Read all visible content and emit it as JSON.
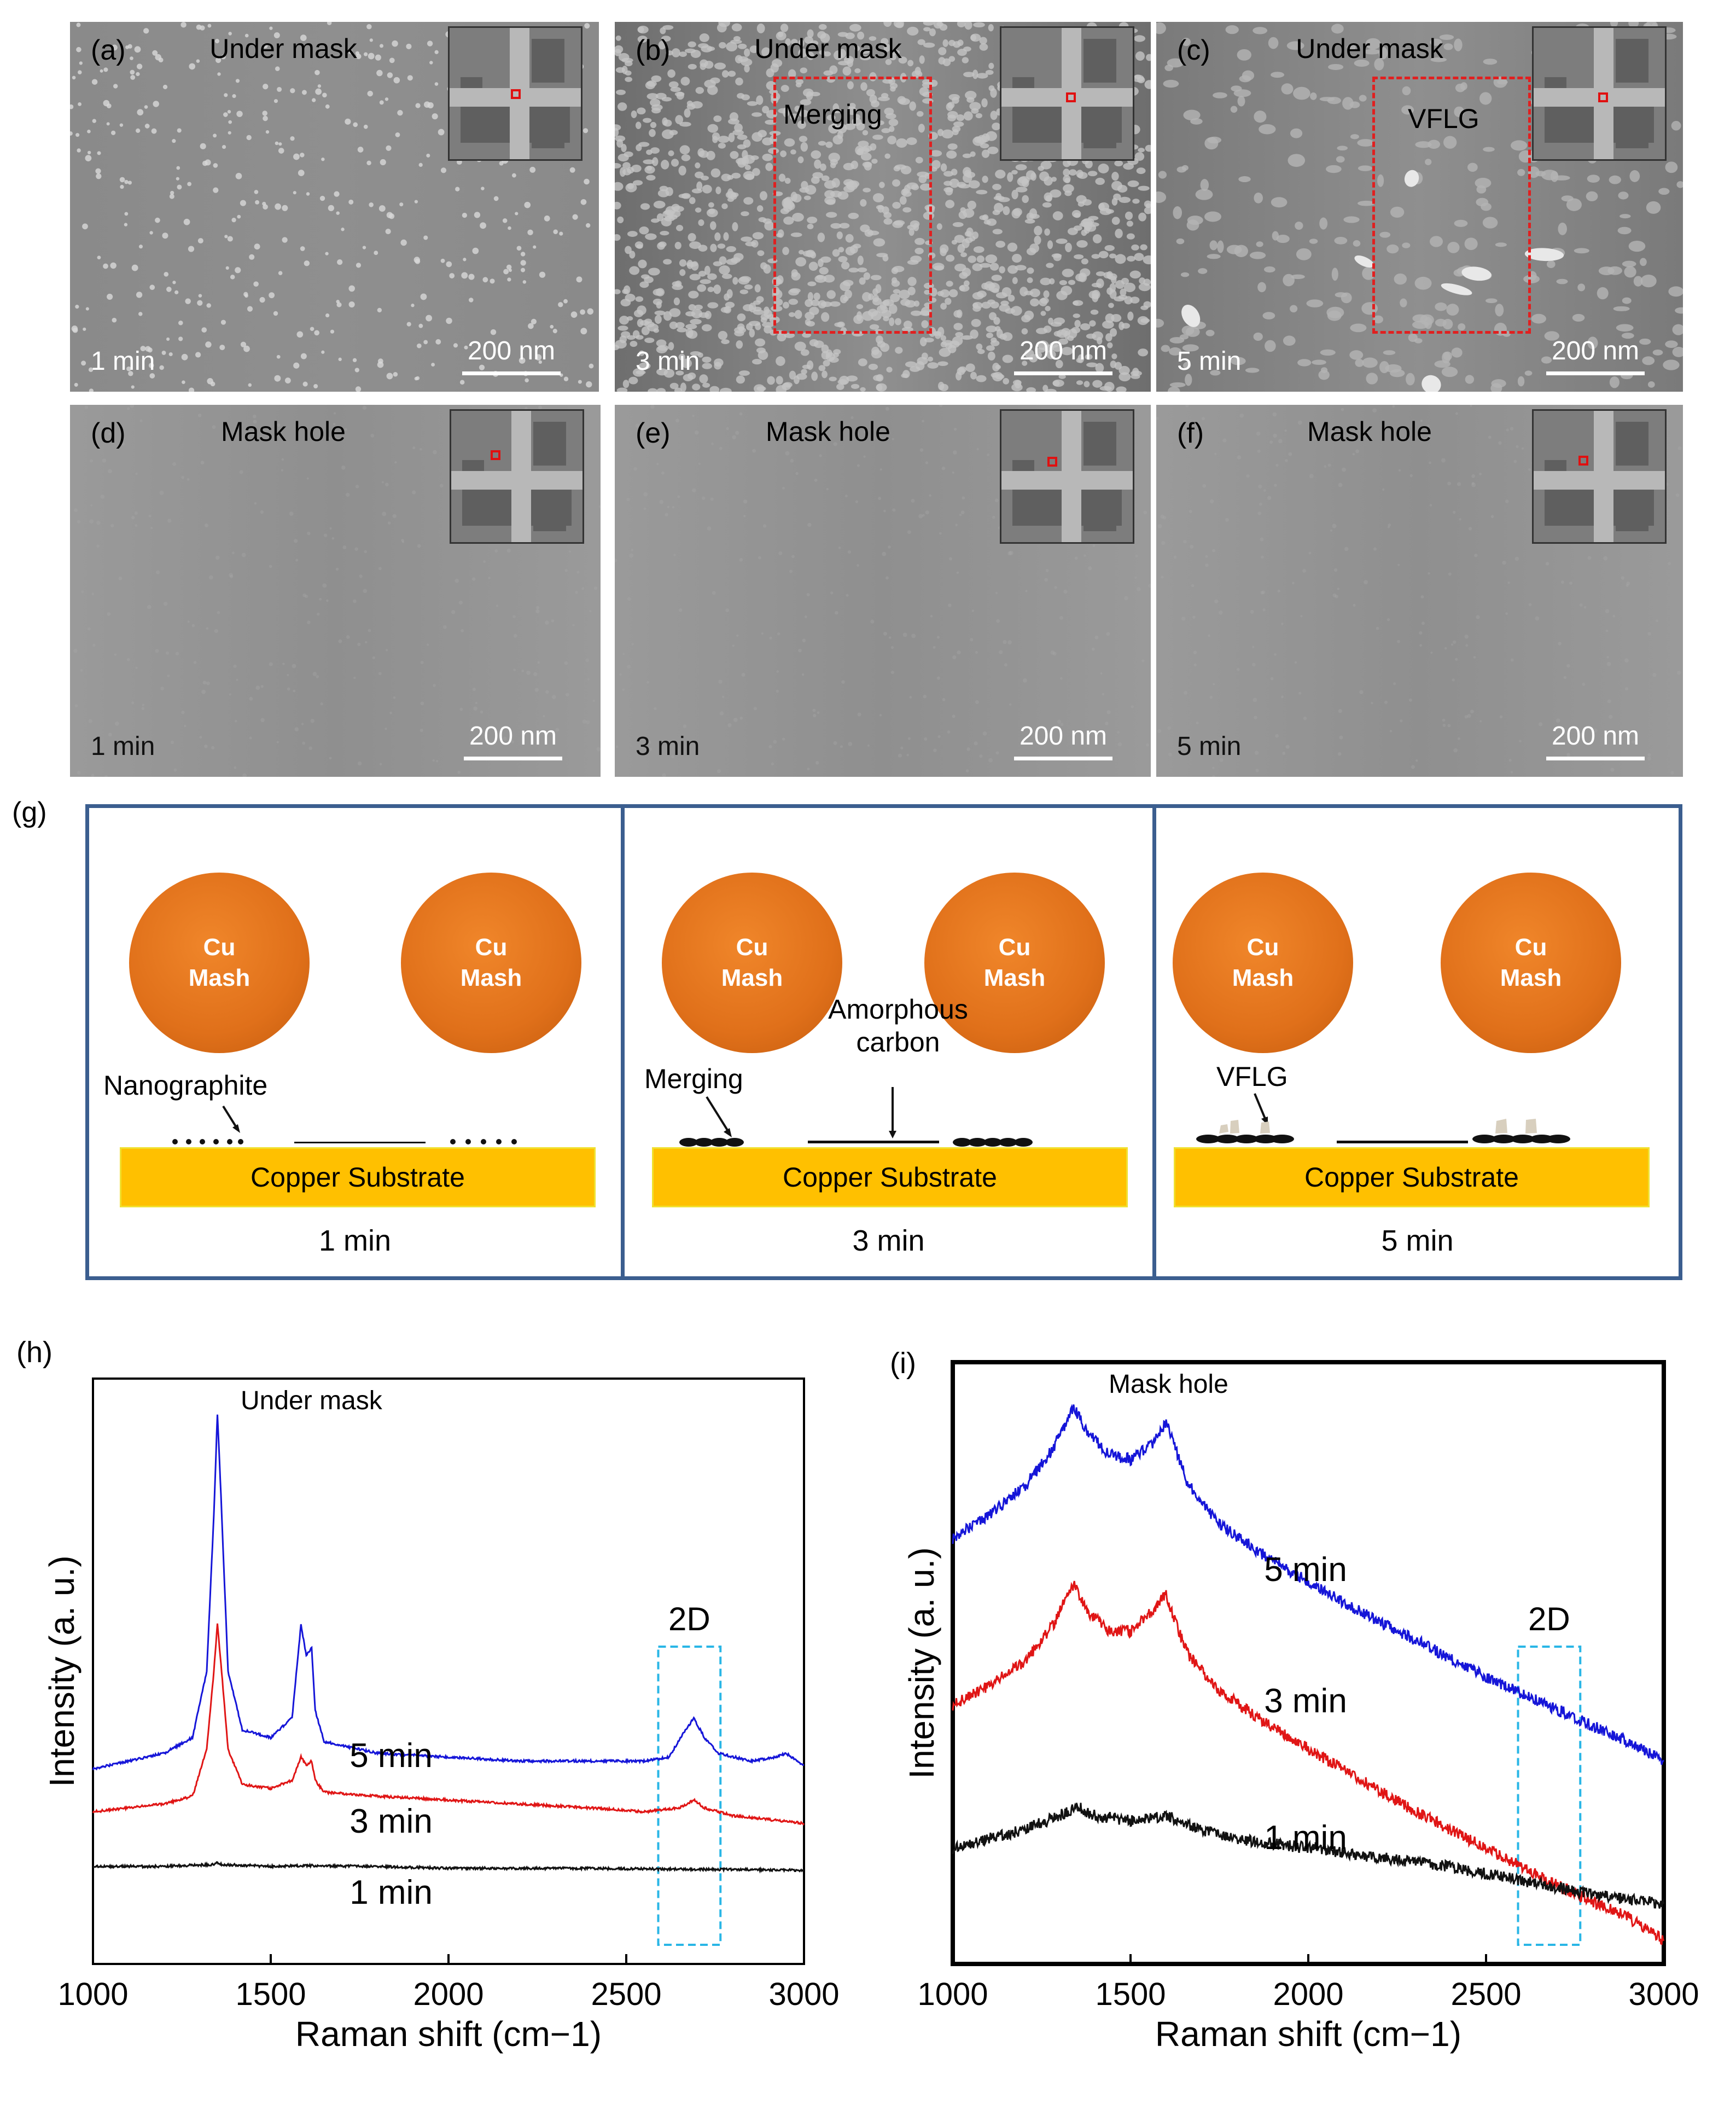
{
  "sem_panels": [
    {
      "id": "a",
      "label": "(a)",
      "title": "Under mask",
      "time": "1 min",
      "scale": "200 nm",
      "annotation": ""
    },
    {
      "id": "b",
      "label": "(b)",
      "title": "Under mask",
      "time": "3 min",
      "scale": "200 nm",
      "annotation": "Merging"
    },
    {
      "id": "c",
      "label": "(c)",
      "title": "Under mask",
      "time": "5 min",
      "scale": "200 nm",
      "annotation": "VFLG"
    },
    {
      "id": "d",
      "label": "(d)",
      "title": "Mask hole",
      "time": "1 min",
      "scale": "200 nm",
      "annotation": ""
    },
    {
      "id": "e",
      "label": "(e)",
      "title": "Mask hole",
      "time": "3 min",
      "scale": "200 nm",
      "annotation": ""
    },
    {
      "id": "f",
      "label": "(f)",
      "title": "Mask hole",
      "time": "5 min",
      "scale": "200 nm",
      "annotation": ""
    }
  ],
  "schematic": {
    "label": "(g)",
    "cu_line1": "Cu",
    "cu_line2": "Mash",
    "substrate": "Copper Substrate",
    "panels": [
      {
        "time": "1 min",
        "annotation": "Nanographite"
      },
      {
        "time": "3 min",
        "annotation": "Merging",
        "annotation2": "Amorphous carbon"
      },
      {
        "time": "5 min",
        "annotation": "VFLG"
      }
    ]
  },
  "chart_data": [
    {
      "type": "line",
      "panel_label": "(h)",
      "title": "Under mask",
      "xlabel": "Raman shift (cm−1)",
      "ylabel": "Intensity (a. u.)",
      "xlim": [
        1000,
        3000
      ],
      "xticks": [
        1000,
        1500,
        2000,
        2500,
        3000
      ],
      "highlight": {
        "label": "2D",
        "x_range": [
          2590,
          2765
        ]
      },
      "series": [
        {
          "name": "5 min",
          "color": "#1515d8",
          "x": [
            1000,
            1100,
            1200,
            1280,
            1320,
            1340,
            1350,
            1360,
            1380,
            1420,
            1500,
            1560,
            1585,
            1600,
            1615,
            1625,
            1650,
            1800,
            2000,
            2200,
            2400,
            2550,
            2620,
            2660,
            2690,
            2720,
            2760,
            2850,
            2920,
            2950,
            2980,
            3000
          ],
          "y": [
            0.05,
            0.07,
            0.09,
            0.13,
            0.3,
            0.7,
            0.96,
            0.75,
            0.3,
            0.15,
            0.13,
            0.18,
            0.42,
            0.34,
            0.36,
            0.2,
            0.12,
            0.09,
            0.08,
            0.07,
            0.07,
            0.07,
            0.08,
            0.14,
            0.18,
            0.13,
            0.09,
            0.07,
            0.08,
            0.09,
            0.07,
            0.06
          ]
        },
        {
          "name": "3 min",
          "color": "#e01515",
          "x": [
            1000,
            1100,
            1200,
            1280,
            1320,
            1340,
            1350,
            1360,
            1380,
            1420,
            1500,
            1560,
            1585,
            1600,
            1615,
            1625,
            1650,
            1800,
            2000,
            2200,
            2400,
            2550,
            2650,
            2690,
            2720,
            2800,
            2900,
            3000
          ],
          "y": [
            -0.06,
            -0.05,
            -0.04,
            -0.02,
            0.1,
            0.3,
            0.42,
            0.32,
            0.1,
            0.01,
            0.0,
            0.02,
            0.08,
            0.06,
            0.07,
            0.02,
            -0.01,
            -0.02,
            -0.03,
            -0.04,
            -0.05,
            -0.06,
            -0.05,
            -0.03,
            -0.05,
            -0.07,
            -0.08,
            -0.09
          ]
        },
        {
          "name": "1 min",
          "color": "#111111",
          "x": [
            1000,
            1200,
            1340,
            1350,
            1360,
            1500,
            1600,
            1800,
            2000,
            2200,
            2400,
            2600,
            2800,
            3000
          ],
          "y": [
            -0.2,
            -0.2,
            -0.195,
            -0.19,
            -0.195,
            -0.2,
            -0.198,
            -0.2,
            -0.205,
            -0.205,
            -0.205,
            -0.207,
            -0.208,
            -0.21
          ]
        }
      ]
    },
    {
      "type": "line",
      "panel_label": "(i)",
      "title": "Mask hole",
      "xlabel": "Raman shift (cm−1)",
      "ylabel": "Intensity (a. u.)",
      "xlim": [
        1000,
        3000
      ],
      "xticks": [
        1000,
        1500,
        2000,
        2500,
        3000
      ],
      "highlight": {
        "label": "2D",
        "x_range": [
          2590,
          2765
        ]
      },
      "series": [
        {
          "name": "5 min",
          "color": "#1515d8",
          "x": [
            1000,
            1100,
            1200,
            1280,
            1340,
            1380,
            1440,
            1500,
            1560,
            1600,
            1620,
            1660,
            1750,
            1900,
            2100,
            2300,
            2500,
            2700,
            2900,
            3000
          ],
          "y": [
            0.72,
            0.77,
            0.83,
            0.91,
            1.0,
            0.95,
            0.9,
            0.89,
            0.92,
            0.97,
            0.93,
            0.84,
            0.75,
            0.67,
            0.58,
            0.5,
            0.42,
            0.35,
            0.28,
            0.24
          ]
        },
        {
          "name": "3 min",
          "color": "#e01515",
          "x": [
            1000,
            1100,
            1200,
            1280,
            1340,
            1380,
            1440,
            1500,
            1560,
            1600,
            1620,
            1660,
            1750,
            1900,
            2100,
            2300,
            2500,
            2700,
            2900,
            3000
          ],
          "y": [
            0.36,
            0.4,
            0.45,
            0.53,
            0.62,
            0.56,
            0.52,
            0.52,
            0.56,
            0.6,
            0.55,
            0.47,
            0.39,
            0.31,
            0.22,
            0.13,
            0.05,
            -0.03,
            -0.1,
            -0.15
          ]
        },
        {
          "name": "1 min",
          "color": "#111111",
          "x": [
            1000,
            1100,
            1200,
            1300,
            1350,
            1400,
            1500,
            1600,
            1700,
            1800,
            2000,
            2200,
            2400,
            2600,
            2800,
            3000
          ],
          "y": [
            0.05,
            0.07,
            0.09,
            0.12,
            0.14,
            0.12,
            0.11,
            0.12,
            0.09,
            0.07,
            0.05,
            0.03,
            0.01,
            -0.02,
            -0.05,
            -0.07
          ]
        }
      ]
    }
  ]
}
